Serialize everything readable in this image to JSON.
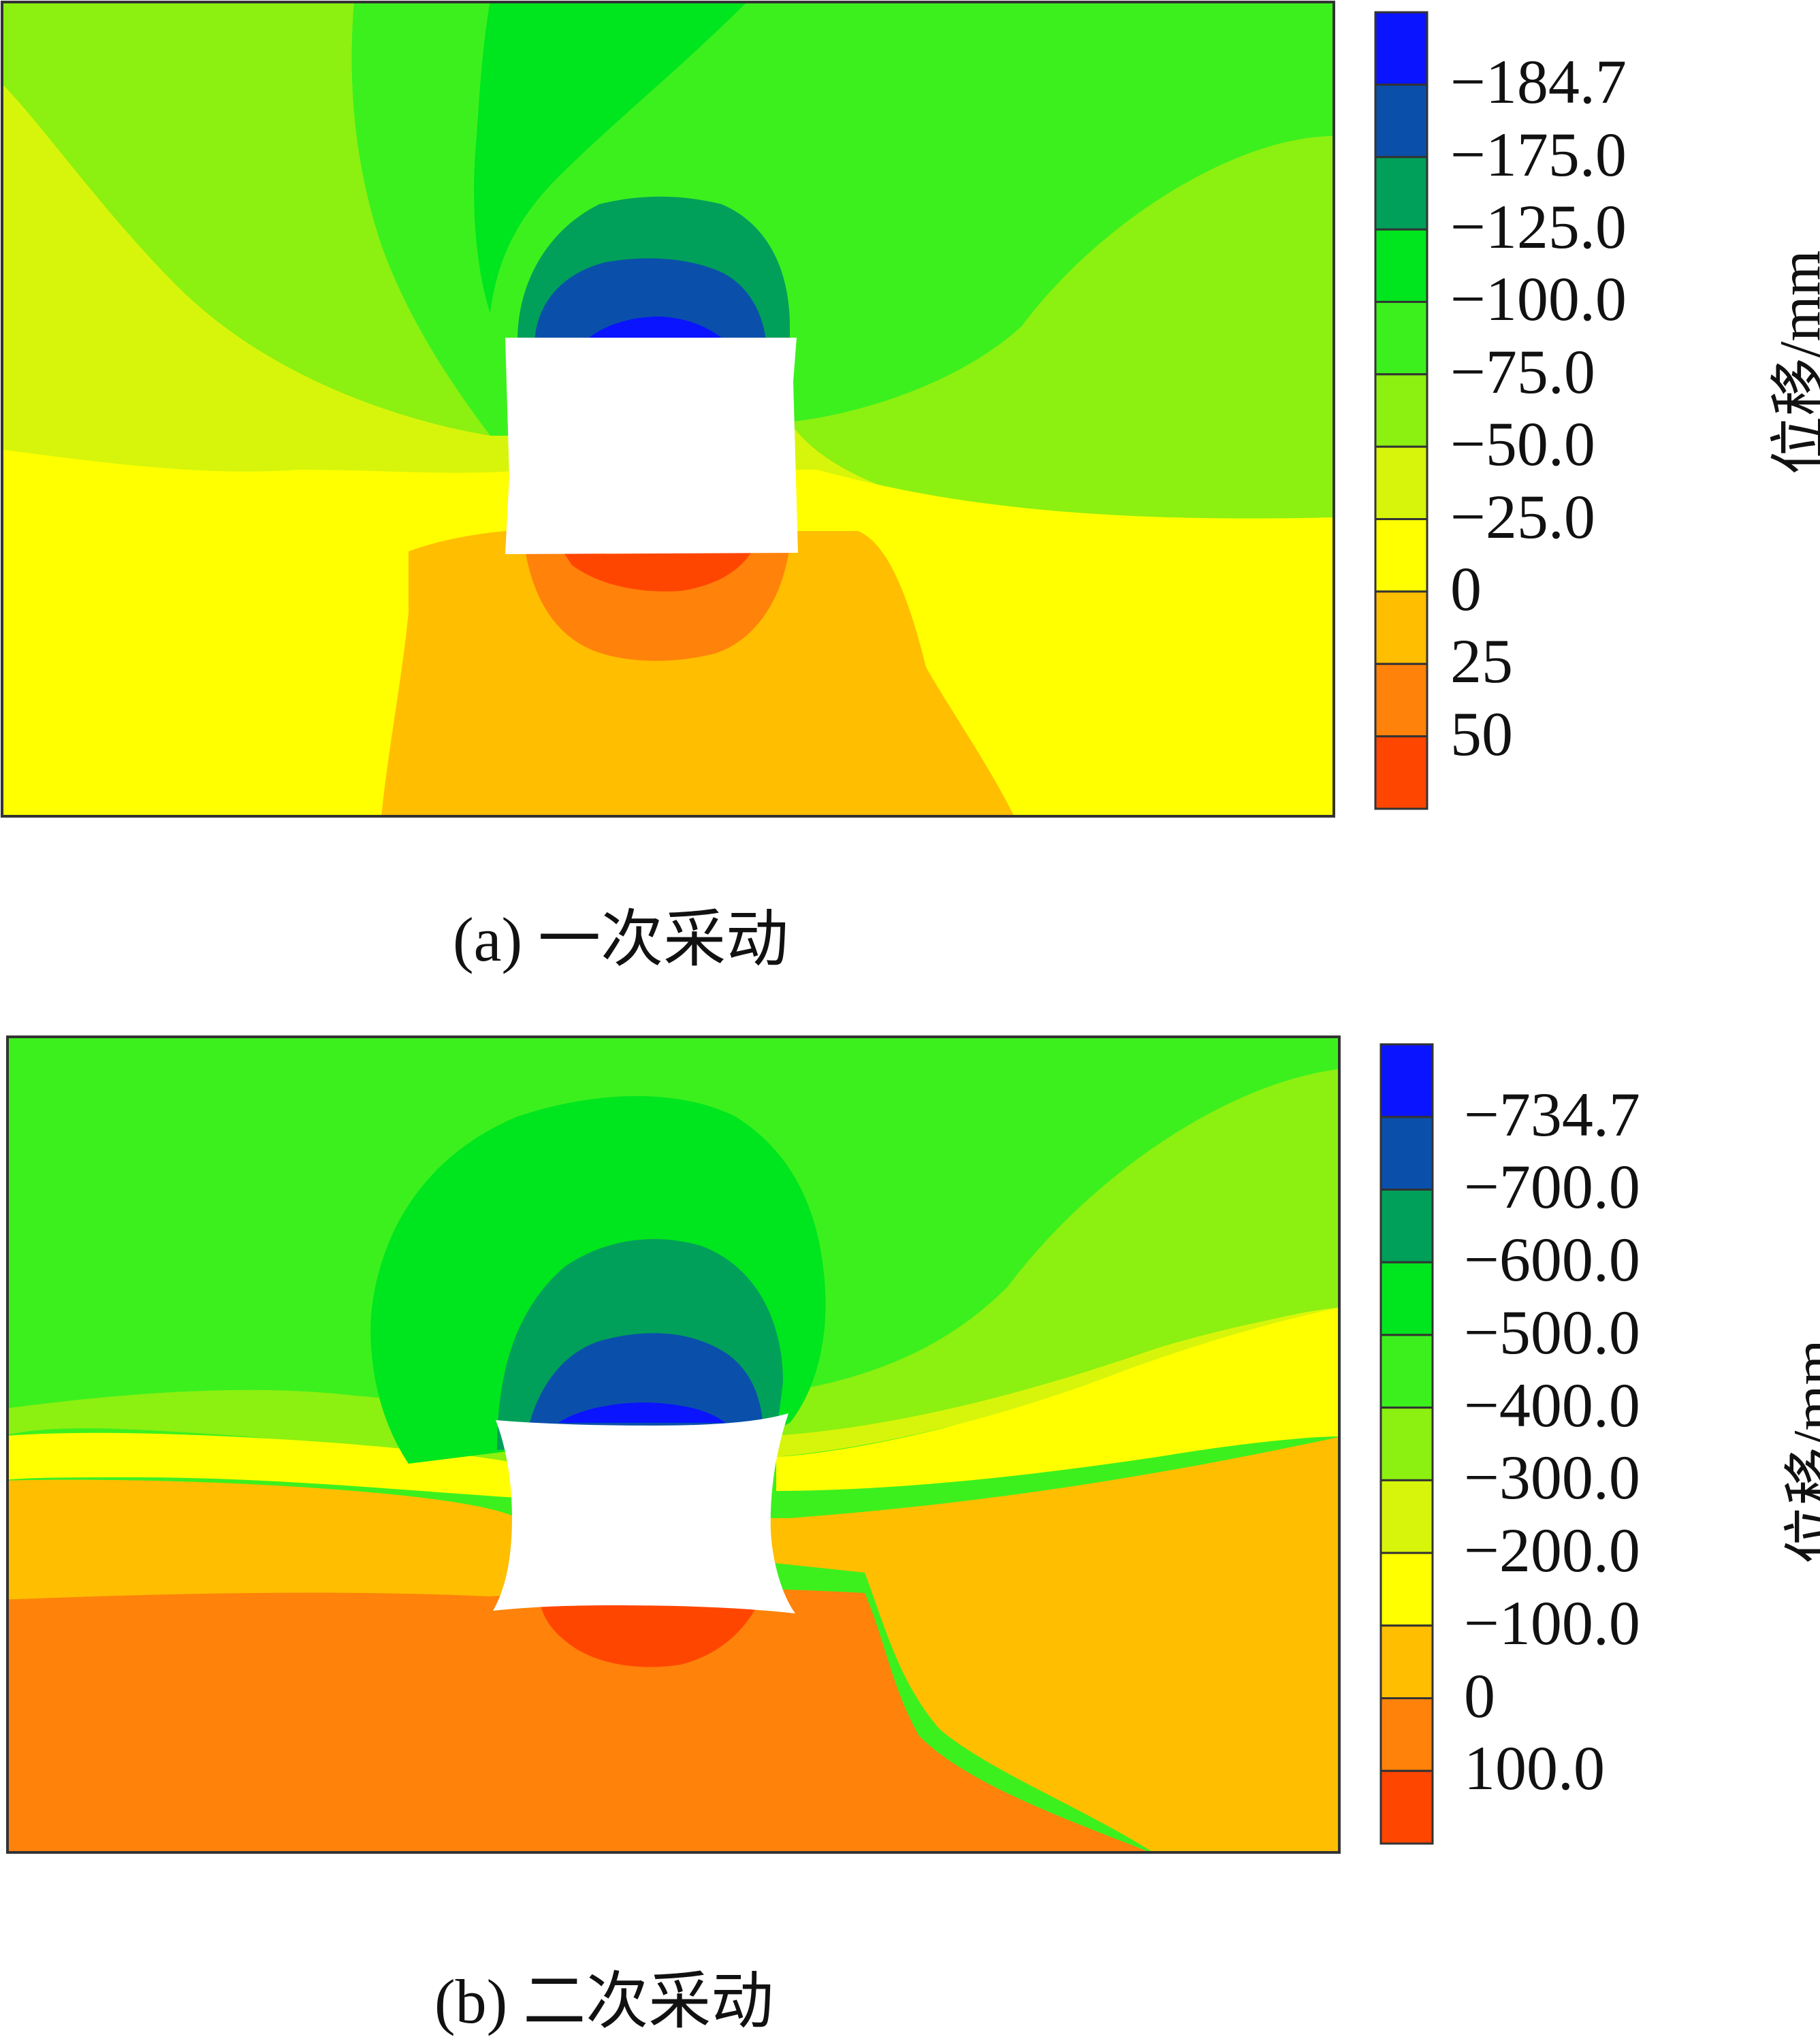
{
  "panels": [
    {
      "id": "a",
      "caption": "(a)  一次采动",
      "colorbar": {
        "title": "位移/mm",
        "labels": [
          "−184.7",
          "−175.0",
          "−125.0",
          "−100.0",
          "−75.0",
          "−50.0",
          "−25.0",
          "0",
          "25",
          "50"
        ],
        "colors": [
          "#0a14ff",
          "#0a50aa",
          "#00a05a",
          "#00e61e",
          "#3cf01e",
          "#8cf010",
          "#d7f50a",
          "#ffff00",
          "#ffbe00",
          "#ff820a",
          "#ff4600"
        ]
      }
    },
    {
      "id": "b",
      "caption": "(b)  二次采动",
      "colorbar": {
        "title": "位移/mm",
        "labels": [
          "−734.7",
          "−700.0",
          "−600.0",
          "−500.0",
          "−400.0",
          "−300.0",
          "−200.0",
          "−100.0",
          "0",
          "100.0"
        ],
        "colors": [
          "#0a14ff",
          "#0a50aa",
          "#00a05a",
          "#00e61e",
          "#3cf01e",
          "#8cf010",
          "#d7f50a",
          "#ffff00",
          "#ffbe00",
          "#ff820a",
          "#ff4600"
        ]
      }
    }
  ]
}
